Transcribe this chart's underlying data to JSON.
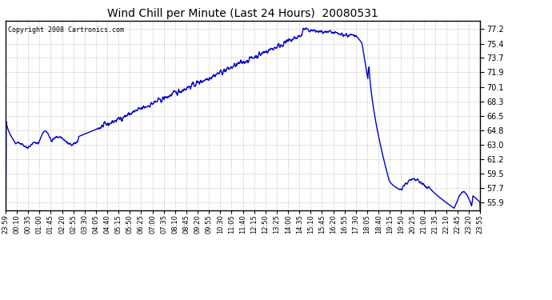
{
  "title": "Wind Chill per Minute (Last 24 Hours)  20080531",
  "copyright": "Copyright 2008 Cartronics.com",
  "line_color": "#0000cc",
  "background_color": "#ffffff",
  "grid_color": "#aaaaaa",
  "border_color": "#000000",
  "yticks": [
    55.9,
    57.7,
    59.5,
    61.2,
    63.0,
    64.8,
    66.5,
    68.3,
    70.1,
    71.9,
    73.7,
    75.4,
    77.2
  ],
  "ylim": [
    55.0,
    78.2
  ],
  "xtick_labels": [
    "23:59",
    "00:10",
    "00:35",
    "01:00",
    "01:45",
    "02:20",
    "02:55",
    "03:30",
    "04:05",
    "04:40",
    "05:15",
    "05:50",
    "06:25",
    "07:00",
    "07:35",
    "08:10",
    "08:45",
    "09:20",
    "09:55",
    "10:30",
    "11:05",
    "11:40",
    "12:15",
    "12:50",
    "13:25",
    "14:00",
    "14:35",
    "15:10",
    "15:45",
    "16:20",
    "16:55",
    "17:30",
    "18:05",
    "18:40",
    "19:15",
    "19:50",
    "20:25",
    "21:00",
    "21:35",
    "22:10",
    "22:45",
    "23:20",
    "23:55"
  ],
  "line_width": 1.0,
  "figsize": [
    6.9,
    3.75
  ],
  "dpi": 100
}
